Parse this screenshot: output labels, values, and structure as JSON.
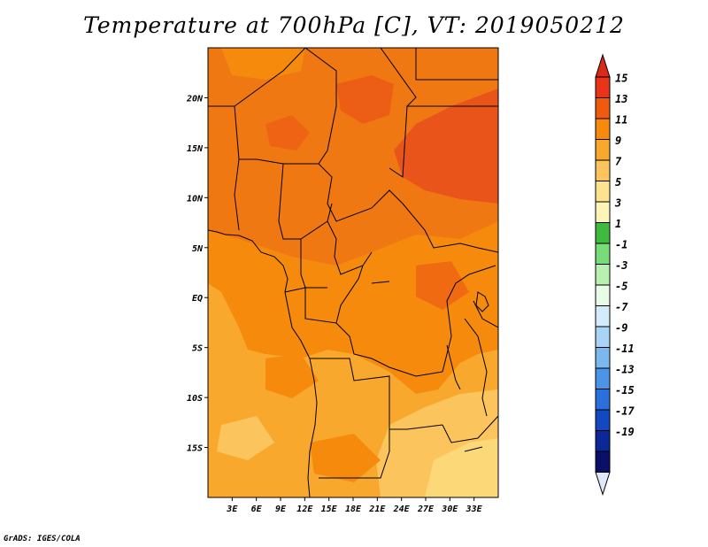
{
  "title": "Temperature at 700hPa [C], VT: 2019050212",
  "credit": "GrADS: IGES/COLA",
  "map": {
    "lon_range": [
      0,
      36
    ],
    "lat_range": [
      -20,
      25
    ],
    "lat_ticks": [
      {
        "value": 20,
        "label": "20N"
      },
      {
        "value": 15,
        "label": "15N"
      },
      {
        "value": 10,
        "label": "10N"
      },
      {
        "value": 5,
        "label": "5N"
      },
      {
        "value": 0,
        "label": "EQ"
      },
      {
        "value": -5,
        "label": "5S"
      },
      {
        "value": -10,
        "label": "10S"
      },
      {
        "value": -15,
        "label": "15S"
      }
    ],
    "lon_ticks": [
      {
        "value": 3,
        "label": "3E"
      },
      {
        "value": 6,
        "label": "6E"
      },
      {
        "value": 9,
        "label": "9E"
      },
      {
        "value": 12,
        "label": "12E"
      },
      {
        "value": 15,
        "label": "15E"
      },
      {
        "value": 18,
        "label": "18E"
      },
      {
        "value": 21,
        "label": "21E"
      },
      {
        "value": 24,
        "label": "24E"
      },
      {
        "value": 27,
        "label": "27E"
      },
      {
        "value": 30,
        "label": "30E"
      },
      {
        "value": 33,
        "label": "33E"
      }
    ]
  },
  "colorbar": {
    "labels": [
      "15",
      "13",
      "11",
      "9",
      "7",
      "5",
      "3",
      "1",
      "-1",
      "-3",
      "-5",
      "-7",
      "-9",
      "-11",
      "-13",
      "-15",
      "-17",
      "-19"
    ],
    "colors": [
      "#e8341a",
      "#f05a0f",
      "#f58a0c",
      "#f9a82e",
      "#fcc45c",
      "#fde38f",
      "#fdf5b8",
      "#3fba3f",
      "#78dc78",
      "#b8f0b0",
      "#e8fae8",
      "#d4ecfa",
      "#a8d4f5",
      "#7ab8ee",
      "#4c94e8",
      "#2a6fdc",
      "#1448c0",
      "#0a2896",
      "#0a1068"
    ],
    "top_color": "#d92a1a",
    "bottom_color": "#e0e8f8"
  }
}
